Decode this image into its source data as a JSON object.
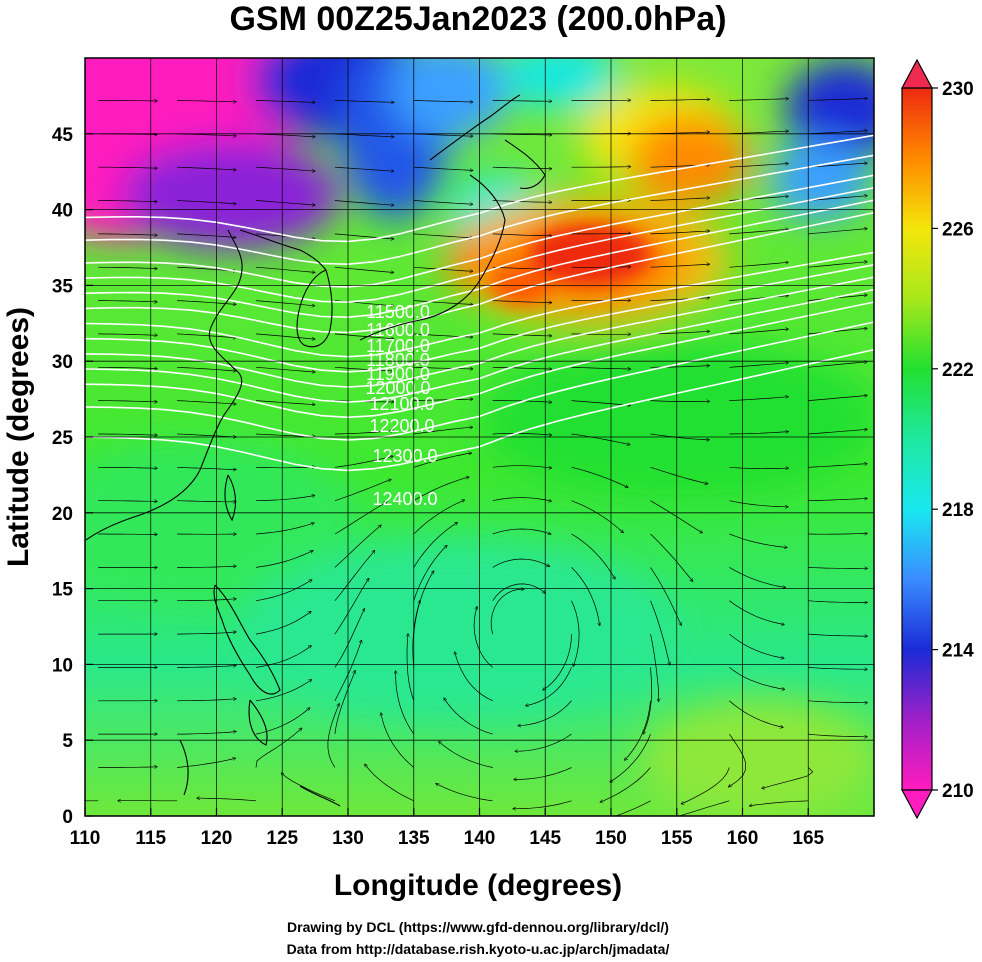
{
  "chart_data": {
    "type": "heatmap",
    "title": "GSM 00Z25Jan2023 (200.0hPa)",
    "xlabel": "Longitude (degrees)",
    "ylabel": "Latitude  (degrees)",
    "xlim": [
      110,
      170
    ],
    "ylim": [
      0,
      50
    ],
    "x_ticks": [
      110,
      115,
      120,
      125,
      130,
      135,
      140,
      145,
      150,
      155,
      160,
      165
    ],
    "y_ticks": [
      0,
      5,
      10,
      15,
      20,
      25,
      30,
      35,
      40,
      45
    ],
    "grid": true,
    "colorbar": {
      "min": 210,
      "max": 230,
      "ticks": [
        210,
        214,
        218,
        222,
        226,
        230
      ],
      "extend": "both"
    },
    "colors": {
      "magenta": "#ff1cbe",
      "blue": "#1a2bd6",
      "cyan": "#19e8f0",
      "green": "#22e030",
      "yellow": "#f4e60a",
      "orange": "#ff8a00",
      "red": "#ee2a10"
    },
    "contour_labels": [
      "11500.0",
      "11600.0",
      "11700.0",
      "11800.0",
      "11900.0",
      "12000.0",
      "12100.0",
      "12200.0",
      "12300.0",
      "12400.0"
    ],
    "credits": [
      "Drawing by DCL (https://www.gfd-dennou.org/library/dcl/)",
      "Data from http://database.rish.kyoto-u.ac.jp/arch/jmadata/"
    ]
  }
}
